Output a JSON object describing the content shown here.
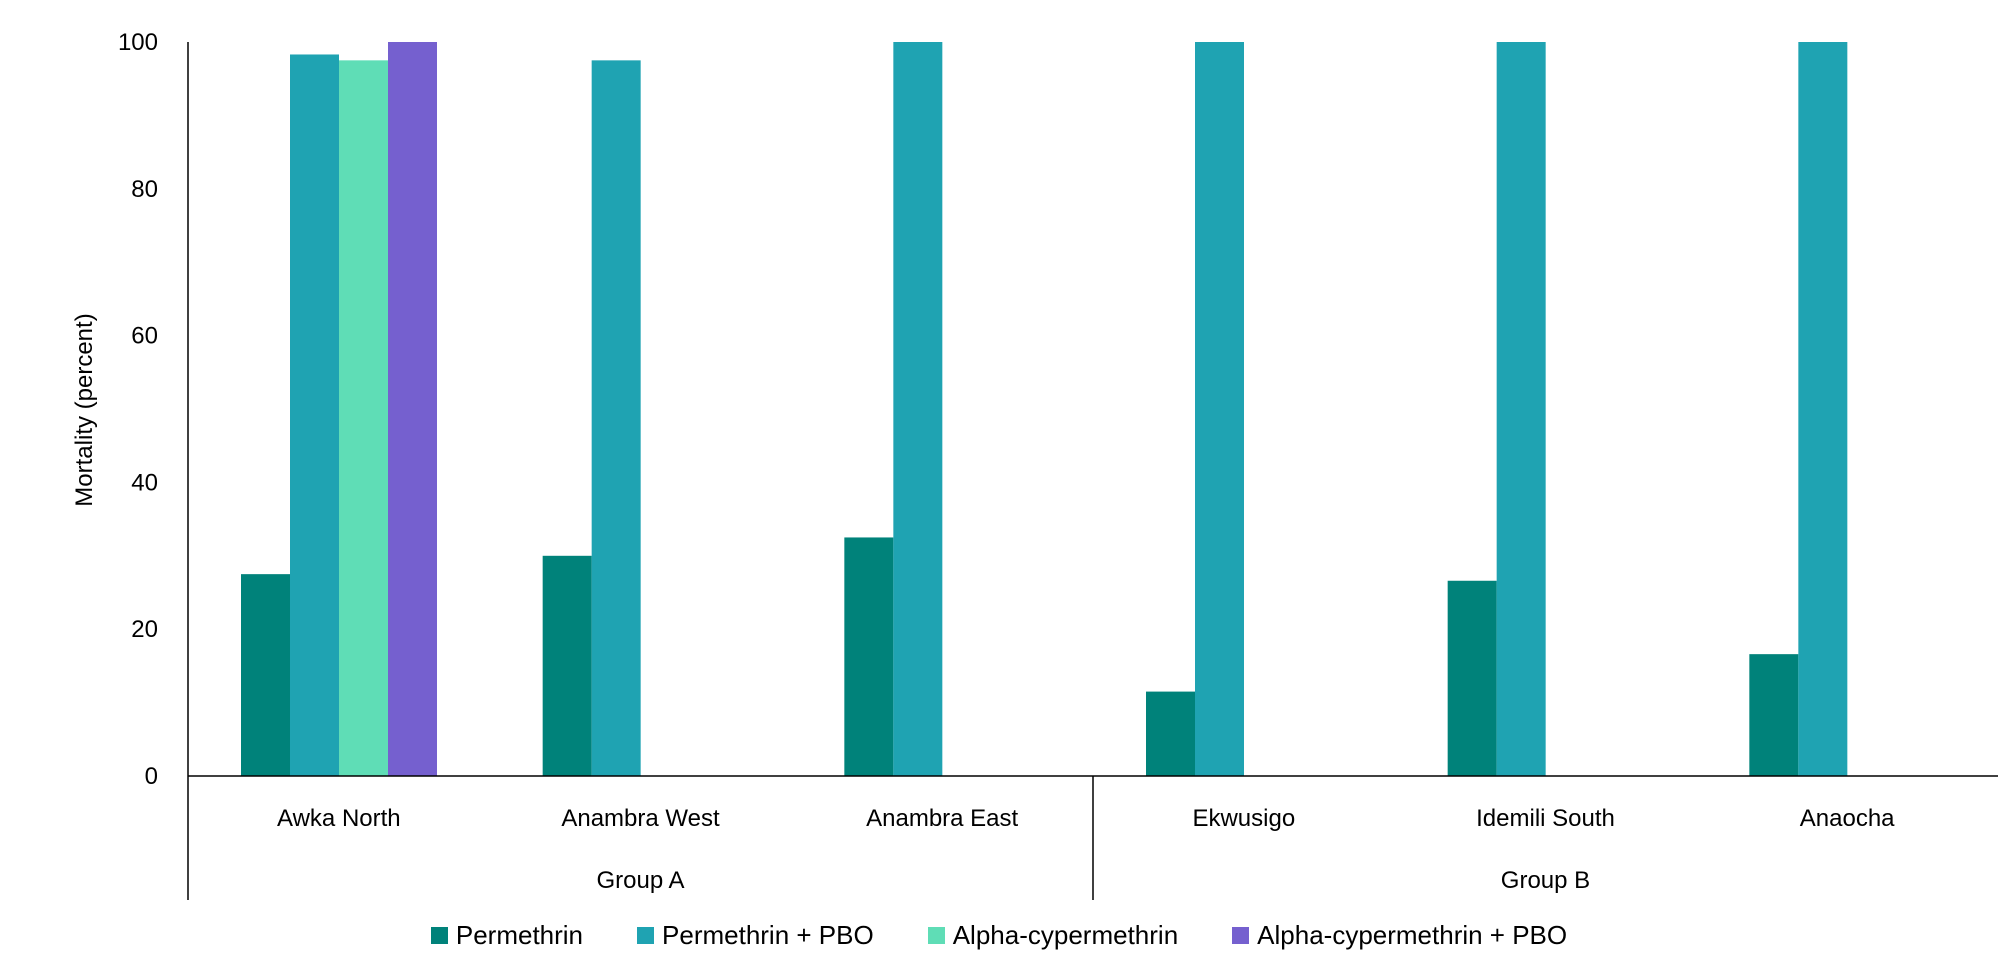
{
  "chart_data": {
    "type": "bar",
    "ylabel": "Mortality (percent)",
    "xlabel": "",
    "ylim": [
      0,
      100
    ],
    "yticks": [
      0,
      20,
      40,
      60,
      80,
      100
    ],
    "grid": false,
    "legend_position": "bottom",
    "categories": [
      "Awka North",
      "Anambra West",
      "Anambra East",
      "Ekwusigo",
      "Idemili South",
      "Anaocha"
    ],
    "groups": [
      {
        "label": "Group A",
        "categories": [
          "Awka North",
          "Anambra West",
          "Anambra East"
        ]
      },
      {
        "label": "Group B",
        "categories": [
          "Ekwusigo",
          "Idemili South",
          "Anaocha"
        ]
      }
    ],
    "series": [
      {
        "name": "Permethrin",
        "color": "#00827a",
        "values": [
          27.5,
          30,
          32.5,
          11.5,
          26.6,
          16.6
        ]
      },
      {
        "name": "Permethrin + PBO",
        "color": "#1fa3b2",
        "values": [
          98.3,
          97.5,
          100,
          100,
          100,
          100
        ]
      },
      {
        "name": "Alpha-cypermethrin",
        "color": "#5fddb6",
        "values": [
          97.5,
          null,
          null,
          null,
          null,
          null
        ]
      },
      {
        "name": "Alpha-cypermethrin + PBO",
        "color": "#7560cf",
        "values": [
          100,
          null,
          null,
          null,
          null,
          null
        ]
      }
    ]
  }
}
